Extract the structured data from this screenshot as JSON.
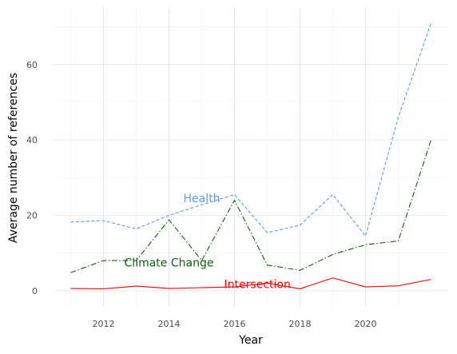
{
  "chart_data": {
    "type": "line",
    "title": "",
    "xlabel": "Year",
    "ylabel": "Average number of references",
    "xlim": [
      2010.5,
      2022.5
    ],
    "ylim": [
      -4.5,
      75
    ],
    "x_ticks": [
      2012,
      2014,
      2016,
      2018,
      2020
    ],
    "y_ticks": [
      0,
      20,
      40,
      60
    ],
    "grid": true,
    "legend": "none",
    "x": [
      2011,
      2012,
      2013,
      2014,
      2015,
      2016,
      2017,
      2018,
      2019,
      2020,
      2021,
      2022
    ],
    "series": [
      {
        "name": "Health",
        "color": "#5b9bea",
        "dash": "dashed",
        "label_at": [
          2015,
          24.5
        ],
        "values": [
          18.2,
          18.6,
          16.4,
          20.0,
          22.8,
          25.5,
          15.4,
          17.4,
          25.5,
          14.5,
          46.0,
          71.0
        ]
      },
      {
        "name": "Climate Change",
        "color": "#0f5e0f",
        "dash": "dashdot",
        "label_at": [
          2014,
          7.5
        ],
        "values": [
          4.8,
          8.0,
          8.0,
          18.8,
          8.0,
          24.0,
          6.8,
          5.4,
          9.6,
          12.2,
          13.2,
          40.0
        ]
      },
      {
        "name": "Intersection",
        "color": "#ff0000",
        "dash": "solid",
        "label_at": [
          2016.7,
          1.8
        ],
        "values": [
          0.6,
          0.5,
          1.2,
          0.6,
          0.8,
          1.0,
          2.0,
          0.5,
          3.4,
          1.0,
          1.3,
          3.0
        ]
      }
    ]
  }
}
